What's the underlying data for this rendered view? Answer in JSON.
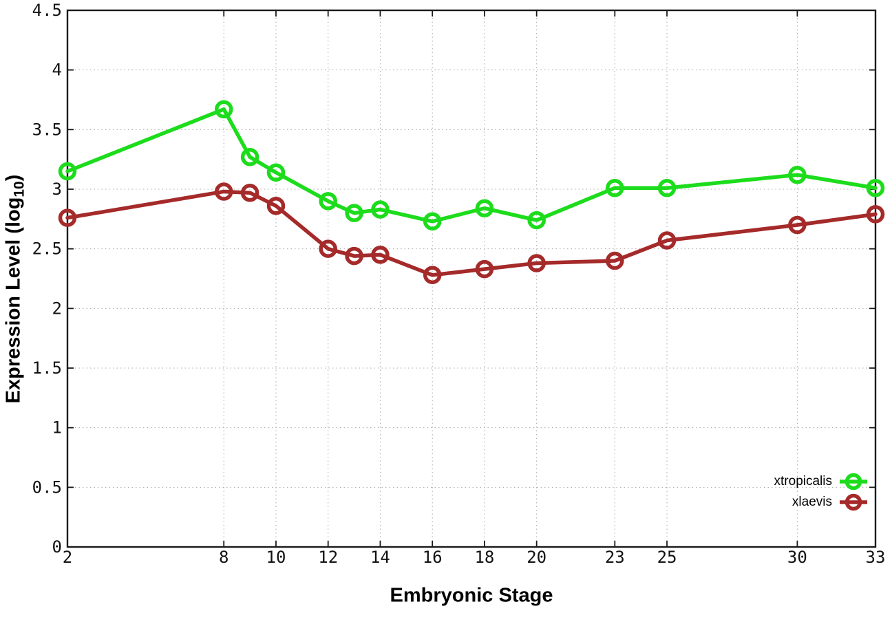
{
  "figure": {
    "background": "#ffffff"
  },
  "chart_data": {
    "type": "line",
    "title": "",
    "xlabel": "Embryonic Stage",
    "ylabel": "Expression Level (log10)",
    "ylabel_parts": {
      "pre": "Expression Level (log",
      "sub": "10",
      "post": ")"
    },
    "x": [
      2,
      8,
      9,
      10,
      12,
      13,
      14,
      16,
      18,
      20,
      23,
      25,
      30,
      33
    ],
    "series": [
      {
        "name": "xtropicalis",
        "color": "#1cdc1c",
        "values": [
          3.15,
          3.67,
          3.27,
          3.14,
          2.9,
          2.8,
          2.83,
          2.73,
          2.84,
          2.74,
          3.01,
          3.01,
          3.12,
          3.01
        ]
      },
      {
        "name": "xlaevis",
        "color": "#a52a2a",
        "values": [
          2.76,
          2.98,
          2.97,
          2.86,
          2.5,
          2.44,
          2.45,
          2.28,
          2.33,
          2.38,
          2.4,
          2.57,
          2.7,
          2.79
        ]
      }
    ],
    "xticks": [
      "2",
      "8",
      "10",
      "12",
      "14",
      "16",
      "18",
      "20",
      "23",
      "25",
      "30",
      "33"
    ],
    "yticks": [
      "0",
      "0.5",
      "1",
      "1.5",
      "2",
      "2.5",
      "3",
      "3.5",
      "4",
      "4.5"
    ],
    "xlim": [
      2,
      33
    ],
    "ylim": [
      0,
      4.5
    ],
    "grid": true,
    "legend": {
      "position": "inside-bottom-right",
      "entries": [
        "xtropicalis",
        "xlaevis"
      ]
    },
    "style": {
      "axis_color": "#1a1a1a",
      "grid_color": "#a8a8a8",
      "line_width": 5.5,
      "marker": "open-circle",
      "marker_radius": 10.5
    }
  }
}
